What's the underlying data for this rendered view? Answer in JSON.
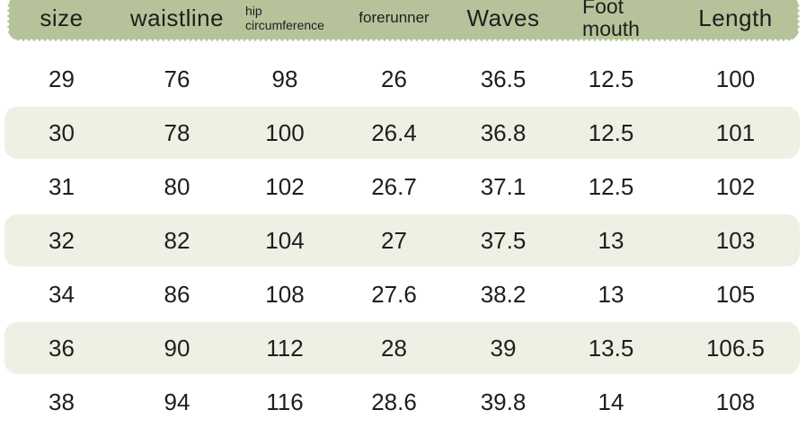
{
  "table": {
    "columns": [
      {
        "key": "size",
        "label": "size",
        "label_size": "lg"
      },
      {
        "key": "waistline",
        "label": "waistline",
        "label_size": "lg"
      },
      {
        "key": "hip",
        "label": "hip circumference",
        "label_size": "sm"
      },
      {
        "key": "forerunner",
        "label": "forerunner",
        "label_size": "md"
      },
      {
        "key": "waves",
        "label": "Waves",
        "label_size": "lg"
      },
      {
        "key": "foot-mouth",
        "label": "Foot mouth",
        "label_size": "lg2"
      },
      {
        "key": "length",
        "label": "Length",
        "label_size": "lg"
      }
    ],
    "rows": [
      [
        "29",
        "76",
        "98",
        "26",
        "36.5",
        "12.5",
        "100"
      ],
      [
        "30",
        "78",
        "100",
        "26.4",
        "36.8",
        "12.5",
        "101"
      ],
      [
        "31",
        "80",
        "102",
        "26.7",
        "37.1",
        "12.5",
        "102"
      ],
      [
        "32",
        "82",
        "104",
        "27",
        "37.5",
        "13",
        "103"
      ],
      [
        "34",
        "86",
        "108",
        "27.6",
        "38.2",
        "13",
        "105"
      ],
      [
        "36",
        "90",
        "112",
        "28",
        "39",
        "13.5",
        "106.5"
      ],
      [
        "38",
        "94",
        "116",
        "28.6",
        "39.8",
        "14",
        "108"
      ]
    ],
    "colors": {
      "header_bg": "#b6c39a",
      "stripe_bg": "#eef0e4",
      "text": "#1e1e1e",
      "page_bg": "#ffffff"
    }
  }
}
